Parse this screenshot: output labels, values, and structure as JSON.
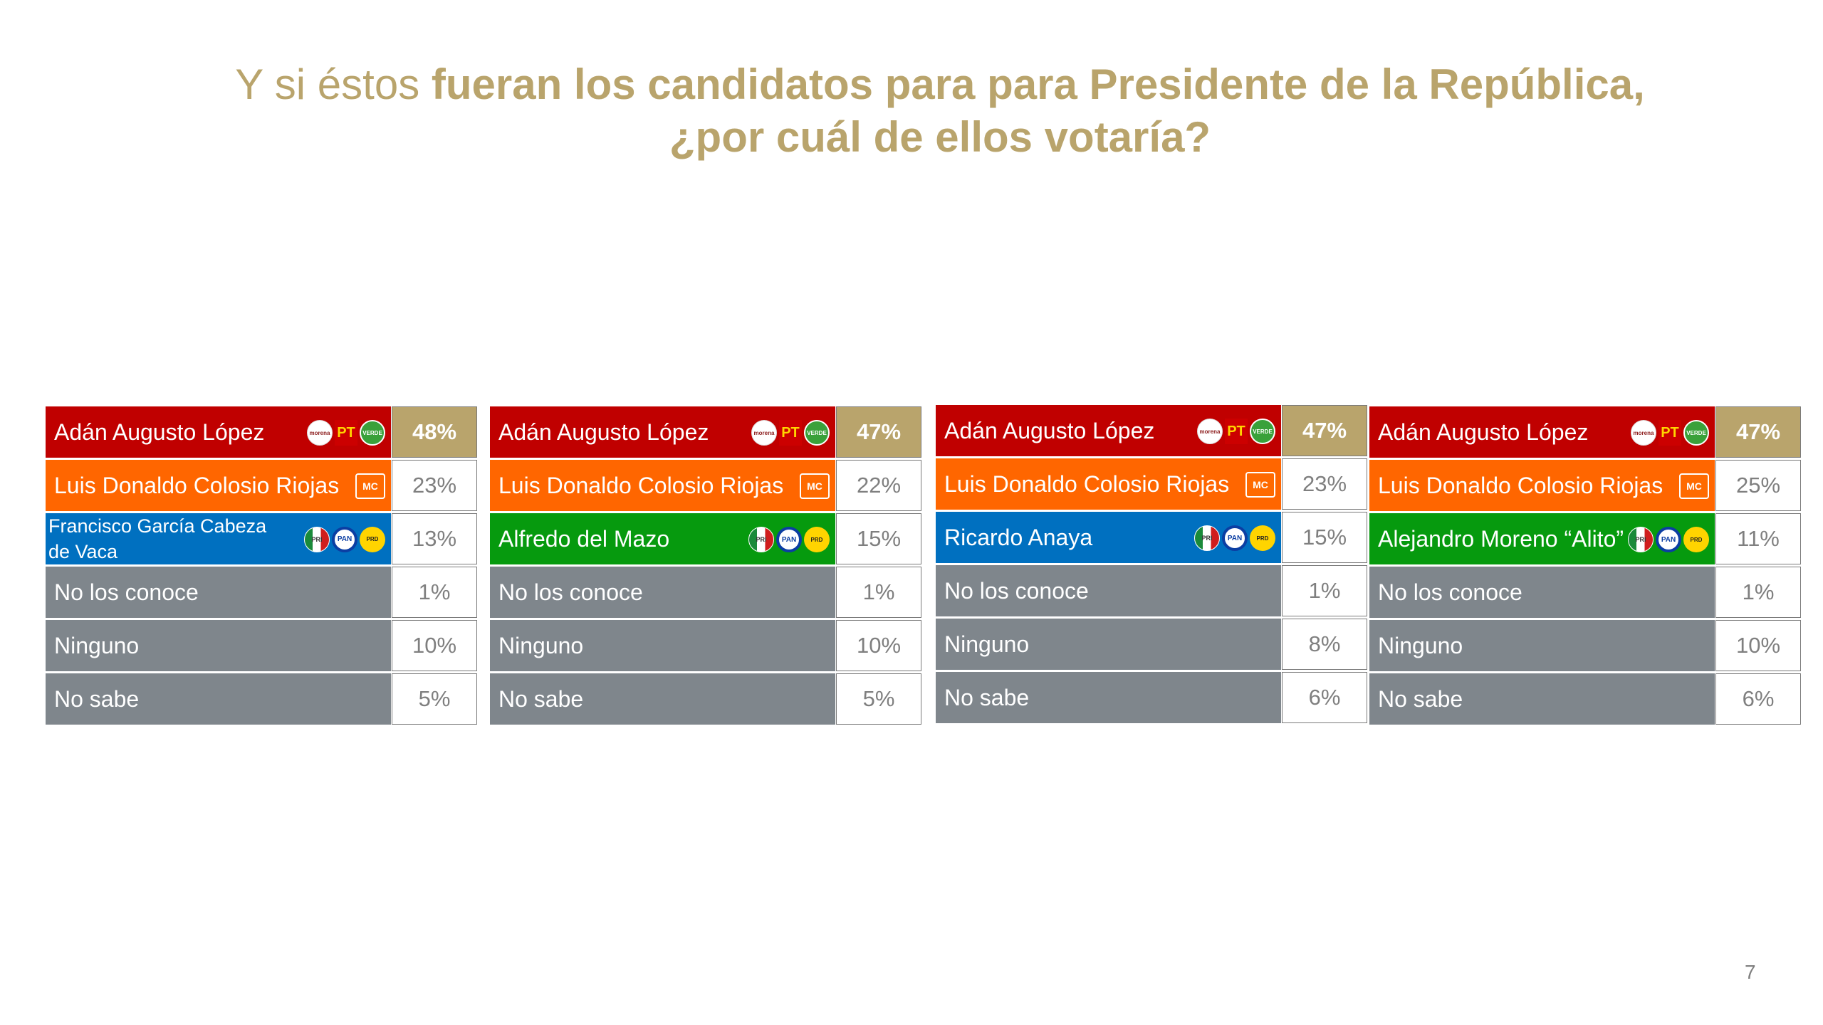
{
  "title": {
    "light": "Y si éstos ",
    "bold": "fueran los candidatos para para Presidente de la República,",
    "line2": "¿por cuál de ellos votaría?"
  },
  "colors": {
    "morena": "#c00000",
    "mc": "#ff6600",
    "pri_pan_prd_blue": "#0070c0",
    "pri_pan_prd_green": "#069a0e",
    "other": "#7f868c",
    "accent": "#b9a46c"
  },
  "chart_data": [
    {
      "type": "table",
      "rows": [
        {
          "label": "Adán Augusto López",
          "value": "48%",
          "color": "#c00000",
          "logos": [
            "morena-logo-icon",
            "pt-logo-icon",
            "verde-logo-icon"
          ]
        },
        {
          "label": "Luis Donaldo Colosio Riojas",
          "value": "23%",
          "color": "#ff6600",
          "logos": [
            "mc-logo-icon"
          ]
        },
        {
          "label": "Francisco García Cabeza de Vaca",
          "value": "13%",
          "color": "#0070c0",
          "logos": [
            "pri-logo-icon",
            "pan-logo-icon",
            "prd-logo-icon"
          ]
        },
        {
          "label": "No los conoce",
          "value": "1%",
          "color": "#7f868c",
          "logos": []
        },
        {
          "label": "Ninguno",
          "value": "10%",
          "color": "#7f868c",
          "logos": []
        },
        {
          "label": "No sabe",
          "value": "5%",
          "color": "#7f868c",
          "logos": []
        }
      ]
    },
    {
      "type": "table",
      "rows": [
        {
          "label": "Adán Augusto López",
          "value": "47%",
          "color": "#c00000",
          "logos": [
            "morena-logo-icon",
            "pt-logo-icon",
            "verde-logo-icon"
          ]
        },
        {
          "label": "Luis Donaldo Colosio Riojas",
          "value": "22%",
          "color": "#ff6600",
          "logos": [
            "mc-logo-icon"
          ]
        },
        {
          "label": "Alfredo del Mazo",
          "value": "15%",
          "color": "#069a0e",
          "logos": [
            "pri-logo-icon",
            "pan-logo-icon",
            "prd-logo-icon"
          ]
        },
        {
          "label": "No los conoce",
          "value": "1%",
          "color": "#7f868c",
          "logos": []
        },
        {
          "label": "Ninguno",
          "value": "10%",
          "color": "#7f868c",
          "logos": []
        },
        {
          "label": "No sabe",
          "value": "5%",
          "color": "#7f868c",
          "logos": []
        }
      ]
    },
    {
      "type": "table",
      "rows": [
        {
          "label": "Adán Augusto López",
          "value": "47%",
          "color": "#c00000",
          "logos": [
            "morena-logo-icon",
            "pt-logo-icon",
            "verde-logo-icon"
          ]
        },
        {
          "label": "Luis Donaldo Colosio Riojas",
          "value": "23%",
          "color": "#ff6600",
          "logos": [
            "mc-logo-icon"
          ]
        },
        {
          "label": "Ricardo Anaya",
          "value": "15%",
          "color": "#0070c0",
          "logos": [
            "pri-logo-icon",
            "pan-logo-icon",
            "prd-logo-icon"
          ]
        },
        {
          "label": "No los conoce",
          "value": "1%",
          "color": "#7f868c",
          "logos": []
        },
        {
          "label": "Ninguno",
          "value": "8%",
          "color": "#7f868c",
          "logos": []
        },
        {
          "label": "No sabe",
          "value": "6%",
          "color": "#7f868c",
          "logos": []
        }
      ]
    },
    {
      "type": "table",
      "rows": [
        {
          "label": "Adán Augusto López",
          "value": "47%",
          "color": "#c00000",
          "logos": [
            "morena-logo-icon",
            "pt-logo-icon",
            "verde-logo-icon"
          ]
        },
        {
          "label": "Luis Donaldo Colosio Riojas",
          "value": "25%",
          "color": "#ff6600",
          "logos": [
            "mc-logo-icon"
          ]
        },
        {
          "label": "Alejandro Moreno “Alito”",
          "value": "11%",
          "color": "#069a0e",
          "logos": [
            "pri-logo-icon",
            "pan-logo-icon",
            "prd-logo-icon"
          ]
        },
        {
          "label": "No los conoce",
          "value": "1%",
          "color": "#7f868c",
          "logos": []
        },
        {
          "label": "Ninguno",
          "value": "10%",
          "color": "#7f868c",
          "logos": []
        },
        {
          "label": "No sabe",
          "value": "6%",
          "color": "#7f868c",
          "logos": []
        }
      ]
    }
  ],
  "page_number": "7"
}
